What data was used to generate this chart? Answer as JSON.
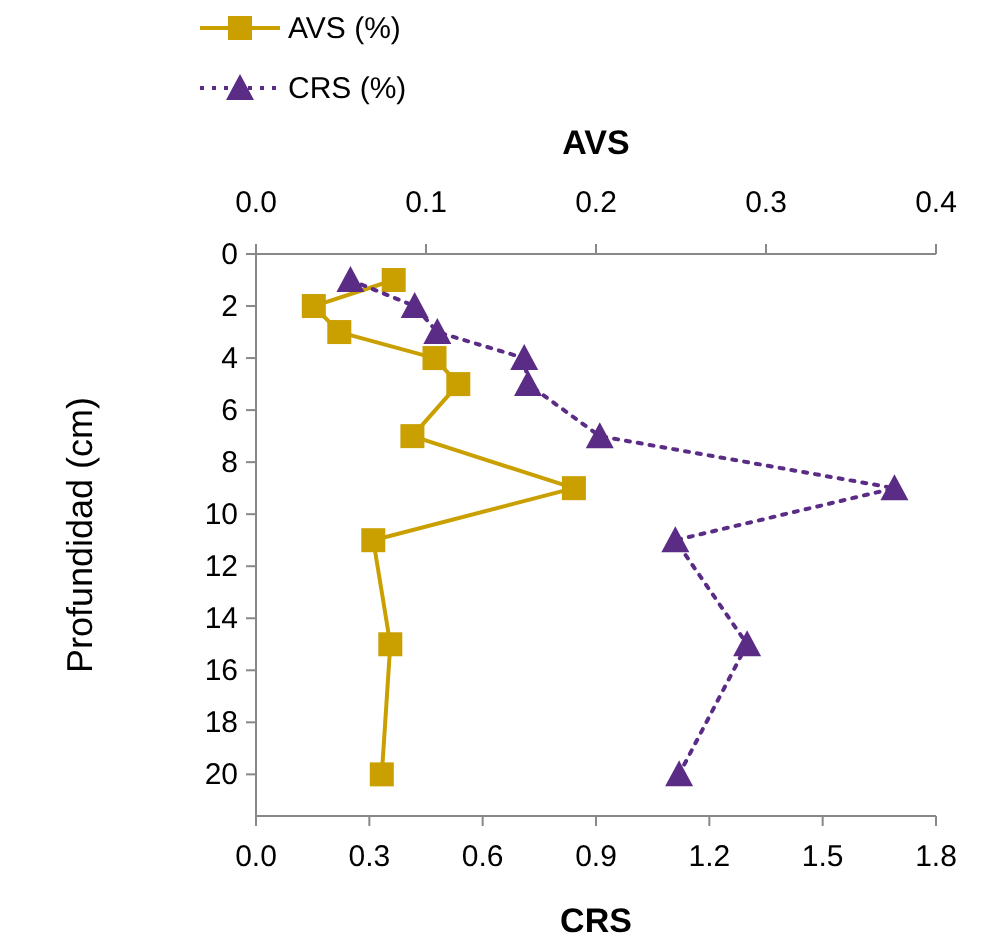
{
  "chart_data": {
    "type": "line",
    "xlabel": "CRS",
    "x2label": "AVS",
    "ylabel": "Profundidad (cm)",
    "xlim": [
      0,
      1.8
    ],
    "xticks": [
      {
        "value": 0,
        "label": "0.0"
      },
      {
        "value": 0.3,
        "label": "0.3"
      },
      {
        "value": 0.6,
        "label": "0.6"
      },
      {
        "value": 0.9,
        "label": "0.9"
      },
      {
        "value": 1.2,
        "label": "1.2"
      },
      {
        "value": 1.5,
        "label": "1.5"
      },
      {
        "value": 1.8,
        "label": "1.8"
      }
    ],
    "x2lim": [
      0,
      0.4
    ],
    "x2ticks": [
      {
        "value": 0,
        "label": "0.0"
      },
      {
        "value": 0.1,
        "label": "0.1"
      },
      {
        "value": 0.2,
        "label": "0.2"
      },
      {
        "value": 0.3,
        "label": "0.3"
      },
      {
        "value": 0.4,
        "label": "0.4"
      }
    ],
    "ylim": [
      21.6,
      0
    ],
    "yticks": [
      0,
      2,
      4,
      6,
      8,
      10,
      12,
      14,
      16,
      18,
      20
    ],
    "grid": false,
    "legend": "top left",
    "series": [
      {
        "name": "AVS (%)",
        "color": "#c9a000",
        "axis": "x2",
        "marker": "square",
        "line_style": "solid",
        "x": [
          0.081,
          0.034,
          0.049,
          0.105,
          0.119,
          0.092,
          0.187,
          0.069,
          0.079,
          0.074
        ],
        "values": [
          1,
          2,
          3,
          4,
          5,
          7,
          9,
          11,
          15,
          20
        ]
      },
      {
        "name": "CRS (%)",
        "color": "#5b2c86",
        "marker": "triangle",
        "line_style": "dotted",
        "x": [
          0.25,
          0.42,
          0.48,
          0.71,
          0.72,
          0.91,
          1.69,
          1.11,
          1.3,
          1.12
        ],
        "values": [
          1,
          2,
          3,
          4,
          5,
          7,
          9,
          11,
          15,
          20
        ]
      }
    ]
  }
}
